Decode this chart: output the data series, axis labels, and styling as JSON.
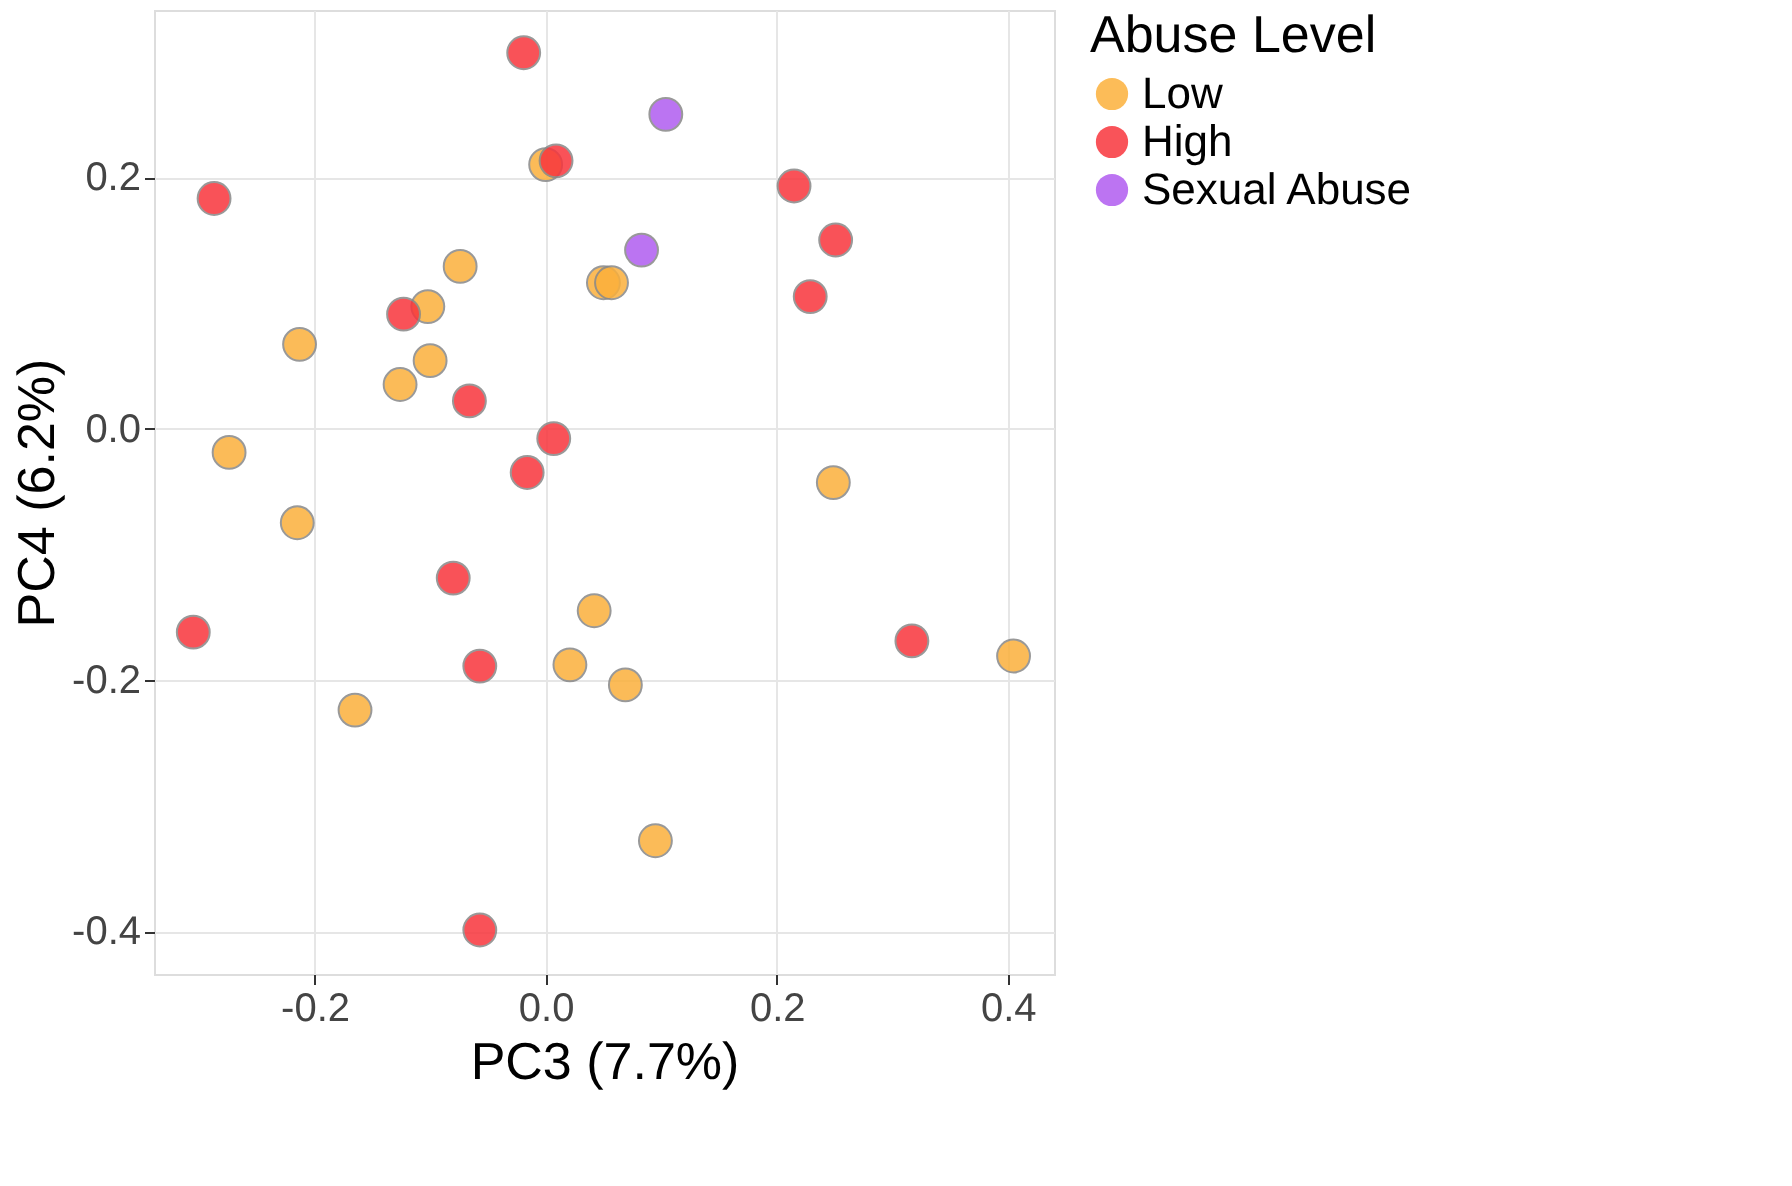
{
  "chart_data": {
    "type": "scatter",
    "xlabel": "PC3 (7.7%)",
    "ylabel": "PC4 (6.2%)",
    "legend_title": "Abuse Level",
    "legend": "right",
    "grid": true,
    "marker": "circle",
    "xlim": [
      -0.339,
      0.44
    ],
    "ylim": [
      -0.434,
      0.333
    ],
    "xticks": [
      {
        "value": -0.2,
        "label": "-0.2"
      },
      {
        "value": 0,
        "label": "0.0"
      },
      {
        "value": 0.2,
        "label": "0.2"
      },
      {
        "value": 0.4,
        "label": "0.4"
      }
    ],
    "yticks": [
      {
        "value": -0.4,
        "label": "-0.4"
      },
      {
        "value": -0.2,
        "label": "-0.2"
      },
      {
        "value": 0,
        "label": "0.0"
      },
      {
        "value": 0.2,
        "label": "0.2"
      }
    ],
    "series": [
      {
        "name": "Low",
        "color": "#fbb03b",
        "x": [
          0.0,
          -0.074,
          -0.102,
          -0.213,
          -0.1,
          -0.126,
          0.05,
          0.057,
          -0.274,
          -0.215,
          0.249,
          0.042,
          0.021,
          0.069,
          -0.165,
          0.095,
          0.405
        ],
        "values": [
          0.21,
          0.129,
          0.097,
          0.067,
          0.054,
          0.035,
          0.116,
          0.116,
          -0.019,
          -0.075,
          -0.043,
          -0.145,
          -0.188,
          -0.204,
          -0.224,
          -0.328,
          -0.181
        ]
      },
      {
        "name": "High",
        "color": "#f8353c",
        "x": [
          -0.019,
          0.009,
          -0.287,
          -0.123,
          -0.066,
          0.007,
          -0.016,
          0.215,
          0.251,
          0.229,
          -0.305,
          -0.08,
          -0.057,
          0.317,
          -0.057
        ],
        "values": [
          0.299,
          0.213,
          0.183,
          0.091,
          0.022,
          -0.008,
          -0.035,
          0.193,
          0.15,
          0.105,
          -0.162,
          -0.119,
          -0.189,
          -0.169,
          -0.399
        ]
      },
      {
        "name": "Sexual Abuse",
        "color": "#b05cf0",
        "x": [
          0.104,
          0.083
        ],
        "values": [
          0.25,
          0.142
        ]
      }
    ]
  }
}
